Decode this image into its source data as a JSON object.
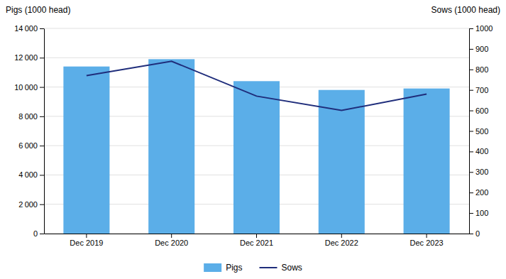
{
  "chart_data": {
    "type": "bar",
    "categories": [
      "Dec 2019",
      "Dec 2020",
      "Dec 2021",
      "Dec 2022",
      "Dec 2023"
    ],
    "series": [
      {
        "name": "Pigs",
        "type": "bar",
        "color": "#5BAEE8",
        "values": [
          11400,
          11900,
          10400,
          9800,
          9900
        ]
      },
      {
        "name": "Sows",
        "type": "line",
        "axis": "y2",
        "color": "#1F2D7B",
        "values": [
          770,
          840,
          670,
          600,
          680
        ]
      }
    ],
    "ylabel": "Pigs (1000 head)",
    "y2label": "Sows (1000 head)",
    "ylim": [
      0,
      14000
    ],
    "yticks": [
      0,
      {
        "value": 2000,
        "label": "2 000"
      },
      {
        "value": 4000,
        "label": "4 000"
      },
      {
        "value": 6000,
        "label": "6 000"
      },
      {
        "value": 8000,
        "label": "8 000"
      },
      {
        "value": 10000,
        "label": "10 000"
      },
      {
        "value": 12000,
        "label": "12 000"
      },
      {
        "value": 14000,
        "label": "14 000"
      }
    ],
    "y2lim": [
      0,
      1000
    ],
    "y2ticks": [
      0,
      100,
      200,
      300,
      400,
      500,
      600,
      700,
      800,
      900,
      1000
    ],
    "grid": true,
    "legend": "bottom"
  }
}
